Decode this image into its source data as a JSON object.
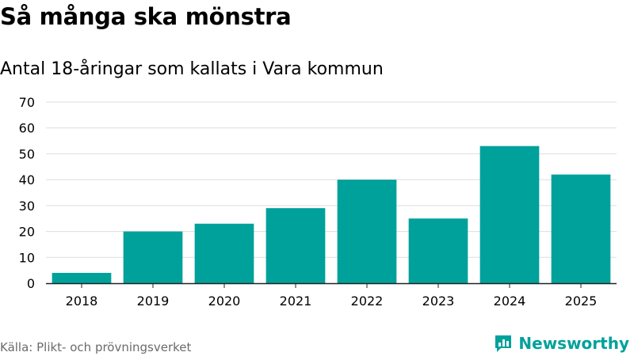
{
  "header": {
    "title": "Så många ska mönstra",
    "subtitle": "Antal 18-åringar som kallats i Vara kommun"
  },
  "footer": {
    "source": "Källa: Plikt- och prövningsverket",
    "brand": "Newsworthy",
    "brand_icon": "newsworthy-logo-icon"
  },
  "colors": {
    "bar": "#00a19b",
    "grid": "#dddddd",
    "axis": "#222222",
    "text": "#000000",
    "muted": "#6b6b6b"
  },
  "chart_data": {
    "type": "bar",
    "categories": [
      "2018",
      "2019",
      "2020",
      "2021",
      "2022",
      "2023",
      "2024",
      "2025"
    ],
    "values": [
      4,
      20,
      23,
      29,
      40,
      25,
      53,
      42
    ],
    "title": "Så många ska mönstra",
    "subtitle": "Antal 18-åringar som kallats i Vara kommun",
    "xlabel": "",
    "ylabel": "",
    "ylim": [
      0,
      70
    ],
    "yticks": [
      0,
      10,
      20,
      30,
      40,
      50,
      60,
      70
    ],
    "grid": true,
    "legend": "none"
  }
}
